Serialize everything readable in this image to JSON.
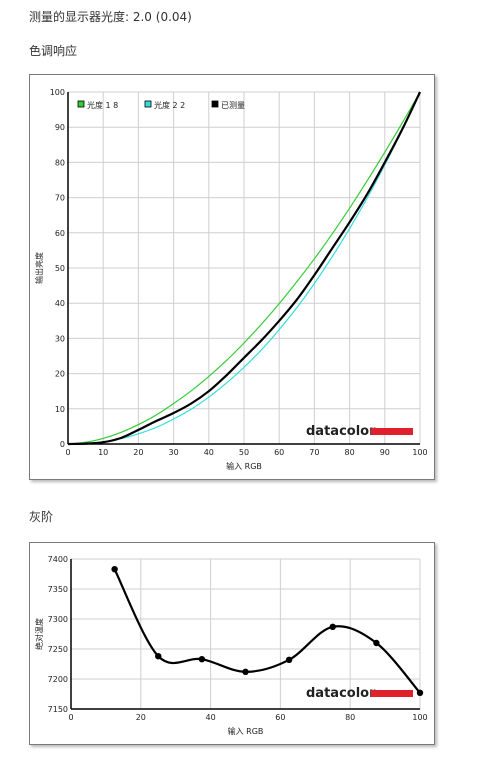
{
  "page": {
    "brightness_line": "测量的显示器光度:  2.0 (0.04)",
    "section1_title": "色调响应",
    "section2_title": "灰阶"
  },
  "brand": {
    "name": "datacolor",
    "bar_color": "#e0202a"
  },
  "chart_data": [
    {
      "type": "line",
      "xlabel": "输入 RGB",
      "ylabel": "输出亮度",
      "xlim": [
        0,
        100
      ],
      "ylim": [
        0,
        100
      ],
      "xticks": [
        0,
        10,
        20,
        30,
        40,
        50,
        60,
        70,
        80,
        90,
        100
      ],
      "yticks": [
        0,
        10,
        20,
        30,
        40,
        50,
        60,
        70,
        80,
        90,
        100
      ],
      "grid": true,
      "legend_position": "top-left",
      "x": [
        0,
        5,
        10,
        15,
        20,
        25,
        30,
        35,
        40,
        45,
        50,
        55,
        60,
        65,
        70,
        75,
        80,
        85,
        90,
        95,
        100
      ],
      "series": [
        {
          "name": "光度 1 8",
          "color": "#33cc33",
          "values": [
            0,
            0.5,
            1.6,
            3.3,
            5.5,
            8.2,
            11.5,
            15.1,
            19.2,
            23.7,
            28.7,
            34.1,
            39.9,
            46.1,
            52.6,
            59.6,
            67.0,
            74.8,
            82.9,
            91.3,
            100
          ]
        },
        {
          "name": "光度 2 2",
          "color": "#33dddd",
          "values": [
            0,
            0.1,
            0.6,
            1.5,
            2.9,
            4.7,
            7.1,
            9.9,
            13.3,
            17.3,
            21.8,
            26.8,
            32.5,
            38.7,
            45.6,
            53.1,
            61.2,
            69.9,
            79.3,
            89.3,
            100
          ]
        },
        {
          "name": "已测量",
          "color": "#000000",
          "values": [
            0,
            0.1,
            0.5,
            1.7,
            4.0,
            6.5,
            8.8,
            11.5,
            15.0,
            19.5,
            24.5,
            29.5,
            35.0,
            41.0,
            48.0,
            55.5,
            63.0,
            71.0,
            80.0,
            89.5,
            100
          ]
        }
      ]
    },
    {
      "type": "line",
      "xlabel": "输入 RGB",
      "ylabel": "绝对温度",
      "xlim": [
        0,
        100
      ],
      "ylim": [
        7150,
        7400
      ],
      "xticks": [
        0,
        20,
        40,
        60,
        80,
        100
      ],
      "yticks": [
        7150,
        7200,
        7250,
        7300,
        7350,
        7400
      ],
      "grid": true,
      "series": [
        {
          "name": "",
          "color": "#000000",
          "x": [
            12.5,
            25,
            37.5,
            50,
            62.5,
            75,
            87.5,
            100
          ],
          "values": [
            7383,
            7238,
            7233,
            7212,
            7232,
            7287,
            7260,
            7177
          ]
        }
      ]
    }
  ]
}
